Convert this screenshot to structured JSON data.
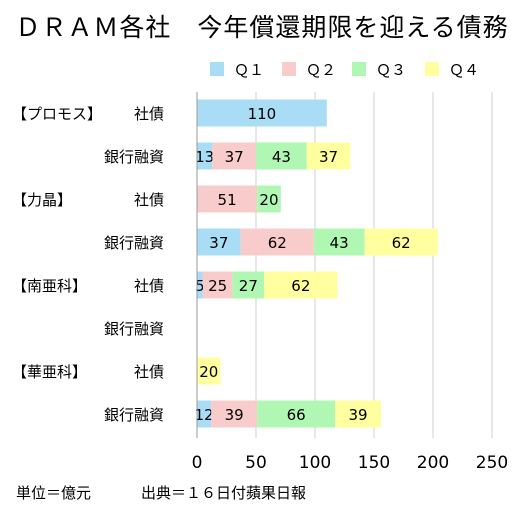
{
  "chart_data": {
    "type": "bar",
    "orientation": "horizontal",
    "stacked": true,
    "title": "ＤＲＡＭ各社　今年償還期限を迎える債務",
    "legend_position": "top-right",
    "legend": [
      "Ｑ１",
      "Ｑ２",
      "Ｑ３",
      "Ｑ４"
    ],
    "colors": [
      "#a9dcf5",
      "#f9cccc",
      "#b0f7b3",
      "#ffff9f"
    ],
    "grid": true,
    "xlim": [
      0,
      250
    ],
    "xticks": [
      "0",
      "50",
      "100",
      "150",
      "200",
      "250"
    ],
    "groups": [
      {
        "company": "【プロモス】",
        "rows": [
          {
            "category": "社債",
            "values": [
              110,
              0,
              0,
              0
            ]
          },
          {
            "category": "銀行融資",
            "values": [
              13,
              37,
              43,
              37
            ]
          }
        ]
      },
      {
        "company": "【力晶】",
        "rows": [
          {
            "category": "社債",
            "values": [
              0,
              51,
              20,
              0
            ]
          },
          {
            "category": "銀行融資",
            "values": [
              37,
              62,
              43,
              62
            ]
          }
        ]
      },
      {
        "company": "【南亜科】",
        "rows": [
          {
            "category": "社債",
            "values": [
              5,
              25,
              27,
              62
            ]
          },
          {
            "category": "銀行融資",
            "values": [
              0,
              0,
              0,
              0
            ]
          }
        ]
      },
      {
        "company": "【華亜科】",
        "rows": [
          {
            "category": "社債",
            "values": [
              0,
              0,
              0,
              20
            ]
          },
          {
            "category": "銀行融資",
            "values": [
              12,
              39,
              66,
              39
            ]
          }
        ]
      }
    ]
  },
  "footer": {
    "unit": "単位＝億元",
    "source": "出典＝１６日付蘋果日報"
  }
}
